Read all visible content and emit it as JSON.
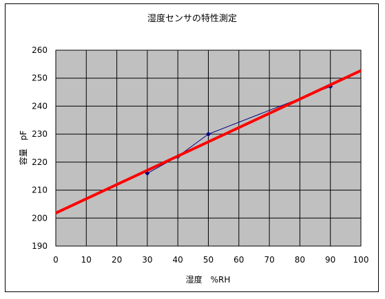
{
  "chart_data": {
    "type": "scatter",
    "title": "湿度センサの特性測定",
    "xlabel": "湿度　%RH",
    "ylabel": "容量　pF",
    "xlim": [
      0,
      100
    ],
    "ylim": [
      190,
      260
    ],
    "xticks": [
      0,
      10,
      20,
      30,
      40,
      50,
      60,
      70,
      80,
      90,
      100
    ],
    "yticks": [
      190,
      200,
      210,
      220,
      230,
      240,
      250,
      260
    ],
    "grid": true,
    "legend": "none",
    "series": [
      {
        "kind": "line-with-markers",
        "color": "#000080",
        "points": [
          [
            30,
            216
          ],
          [
            40,
            222
          ],
          [
            50,
            230
          ],
          [
            90,
            247
          ]
        ]
      },
      {
        "kind": "trendline",
        "color": "#ff0000",
        "points": [
          [
            0,
            201.8
          ],
          [
            100,
            252.7
          ]
        ]
      }
    ],
    "colors": {
      "plot_background": "#c0c0c0",
      "grid": "#000000"
    }
  }
}
